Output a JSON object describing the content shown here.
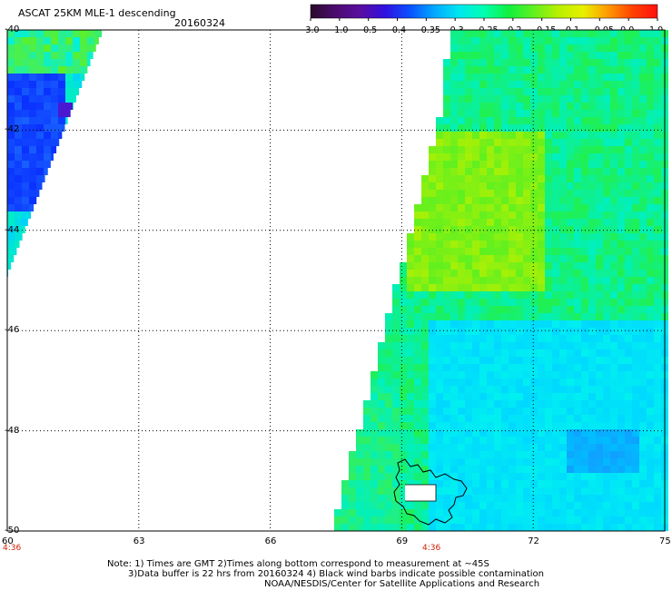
{
  "header": {
    "title": "ASCAT 25KM MLE-1 descending",
    "date": "20160324"
  },
  "colorbar": {
    "labels": [
      "-3.0",
      "-1.0",
      "-0.5",
      "-0.4",
      "-0.35",
      "-0.3",
      "-0.25",
      "-0.2",
      "-0.15",
      "-0.1",
      "-0.05",
      "0.0",
      "1.0"
    ],
    "colors": [
      "#2a0a2a",
      "#5a0ea0",
      "#3010e0",
      "#0a50ff",
      "#00a8ff",
      "#00e8f0",
      "#00ffb0",
      "#10f040",
      "#60f020",
      "#e8f000",
      "#ff9a00",
      "#ff4000",
      "#ff1010"
    ]
  },
  "map": {
    "lat_labels": [
      "-40",
      "-42",
      "-44",
      "-46",
      "-48",
      "-50"
    ],
    "lon_labels": [
      "60",
      "63",
      "66",
      "69",
      "72",
      "75"
    ],
    "time_labels": [
      "4:36",
      "4:36"
    ],
    "lat_range": [
      -50,
      -40
    ],
    "lon_range": [
      60,
      75
    ]
  },
  "footer": {
    "line1": "Note: 1) Times are GMT 2)Times along bottom correspond to measurement at ~45S",
    "line2": "3)Data buffer is 22 hrs from 20160324 4) Black wind barbs indicate possible contamination",
    "line3": "NOAA/NESDIS/Center for Satellite Applications and Research"
  }
}
